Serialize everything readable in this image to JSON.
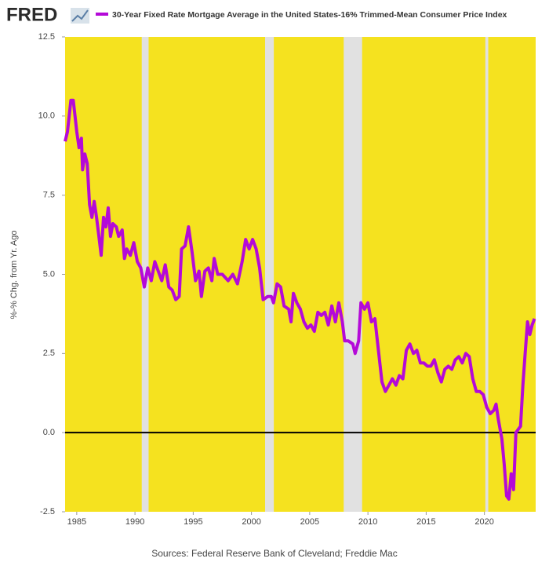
{
  "logo": "FRED",
  "chart_data": {
    "type": "line",
    "title": "30-Year Fixed Rate Mortgage Average in the United States-16% Trimmed-Mean Consumer Price Index",
    "y_label": "%-% Chg. from Yr. Ago",
    "source": "Sources: Federal Reserve Bank of Cleveland; Freddie Mac",
    "background_color": "#f5e21f",
    "recession_color": "#e1e1e1",
    "recessions": [
      [
        1990.58,
        1991.17
      ],
      [
        2001.17,
        2001.92
      ],
      [
        2007.92,
        2009.5
      ],
      [
        2020.08,
        2020.33
      ]
    ],
    "zero_line": 0,
    "xlim": [
      1984.0,
      2024.4
    ],
    "xticks": [
      1985,
      1990,
      1995,
      2000,
      2005,
      2010,
      2015,
      2020
    ],
    "ylim": [
      -2.5,
      12.5
    ],
    "yticks": [
      -2.5,
      {
        "value": 0,
        "label": "0.0"
      },
      2.5,
      {
        "value": 5,
        "label": "5.0"
      },
      7.5,
      {
        "value": 10,
        "label": "10.0"
      },
      12.5
    ],
    "x": [
      1984.0,
      1984.2,
      1984.5,
      1984.7,
      1985.0,
      1985.2,
      1985.4,
      1985.5,
      1985.7,
      1985.9,
      1986.1,
      1986.3,
      1986.5,
      1986.7,
      1986.9,
      1987.1,
      1987.3,
      1987.5,
      1987.7,
      1987.9,
      1988.1,
      1988.4,
      1988.6,
      1988.9,
      1989.1,
      1989.3,
      1989.6,
      1989.9,
      1990.2,
      1990.5,
      1990.8,
      1991.1,
      1991.4,
      1991.7,
      1992.0,
      1992.3,
      1992.6,
      1992.9,
      1993.2,
      1993.5,
      1993.8,
      1994.0,
      1994.3,
      1994.6,
      1994.9,
      1995.2,
      1995.5,
      1995.7,
      1996.0,
      1996.3,
      1996.6,
      1996.8,
      1997.1,
      1997.5,
      1998.0,
      1998.4,
      1998.8,
      1999.2,
      1999.5,
      1999.8,
      2000.1,
      2000.4,
      2000.7,
      2001.0,
      2001.4,
      2001.7,
      2001.9,
      2002.2,
      2002.5,
      2002.8,
      2003.2,
      2003.4,
      2003.6,
      2003.9,
      2004.2,
      2004.5,
      2004.8,
      2005.1,
      2005.4,
      2005.7,
      2006.0,
      2006.3,
      2006.6,
      2006.9,
      2007.2,
      2007.5,
      2007.8,
      2008.0,
      2008.3,
      2008.7,
      2008.9,
      2009.2,
      2009.4,
      2009.7,
      2010.0,
      2010.3,
      2010.6,
      2010.9,
      2011.2,
      2011.5,
      2011.8,
      2012.1,
      2012.4,
      2012.7,
      2013.0,
      2013.3,
      2013.6,
      2013.9,
      2014.2,
      2014.5,
      2014.8,
      2015.1,
      2015.4,
      2015.7,
      2016.0,
      2016.3,
      2016.6,
      2016.9,
      2017.2,
      2017.5,
      2017.8,
      2018.1,
      2018.4,
      2018.7,
      2019.0,
      2019.3,
      2019.6,
      2019.9,
      2020.2,
      2020.5,
      2020.8,
      2021.0,
      2021.2,
      2021.5,
      2021.7,
      2021.9,
      2022.1,
      2022.3,
      2022.5,
      2022.7,
      2022.9,
      2023.1,
      2023.3,
      2023.5,
      2023.7,
      2023.9,
      2024.1,
      2024.3
    ],
    "series": [
      {
        "name": "30-Year Fixed Rate Mortgage Average in the United States-16% Trimmed-Mean Consumer Price Index",
        "color": "#b40ad8",
        "values": [
          9.2,
          9.5,
          10.5,
          10.5,
          9.5,
          9.0,
          9.3,
          8.3,
          8.8,
          8.5,
          7.2,
          6.8,
          7.3,
          6.8,
          6.2,
          5.6,
          6.8,
          6.5,
          7.1,
          6.2,
          6.6,
          6.5,
          6.2,
          6.4,
          5.5,
          5.8,
          5.6,
          6.0,
          5.4,
          5.2,
          4.6,
          5.2,
          4.8,
          5.4,
          5.1,
          4.8,
          5.3,
          4.6,
          4.5,
          4.2,
          4.3,
          5.8,
          5.9,
          6.5,
          5.7,
          4.8,
          5.1,
          4.3,
          5.1,
          5.2,
          4.8,
          5.5,
          5.0,
          5.0,
          4.8,
          5.0,
          4.7,
          5.4,
          6.1,
          5.8,
          6.1,
          5.8,
          5.2,
          4.2,
          4.3,
          4.3,
          4.1,
          4.7,
          4.6,
          4.0,
          3.9,
          3.5,
          4.4,
          4.1,
          3.9,
          3.5,
          3.3,
          3.4,
          3.2,
          3.8,
          3.7,
          3.8,
          3.4,
          4.0,
          3.5,
          4.1,
          3.5,
          2.9,
          2.9,
          2.8,
          2.5,
          2.9,
          4.1,
          3.9,
          4.1,
          3.5,
          3.6,
          2.6,
          1.6,
          1.3,
          1.5,
          1.7,
          1.5,
          1.8,
          1.7,
          2.6,
          2.8,
          2.5,
          2.6,
          2.2,
          2.2,
          2.1,
          2.1,
          2.3,
          1.9,
          1.6,
          2.0,
          2.1,
          2.0,
          2.3,
          2.4,
          2.2,
          2.5,
          2.4,
          1.7,
          1.3,
          1.3,
          1.2,
          0.8,
          0.6,
          0.7,
          0.9,
          0.4,
          -0.2,
          -1.0,
          -2.0,
          -2.1,
          -1.3,
          -1.8,
          0.0,
          0.1,
          0.2,
          1.5,
          2.5,
          3.5,
          3.1,
          3.4,
          3.6
        ]
      }
    ]
  }
}
